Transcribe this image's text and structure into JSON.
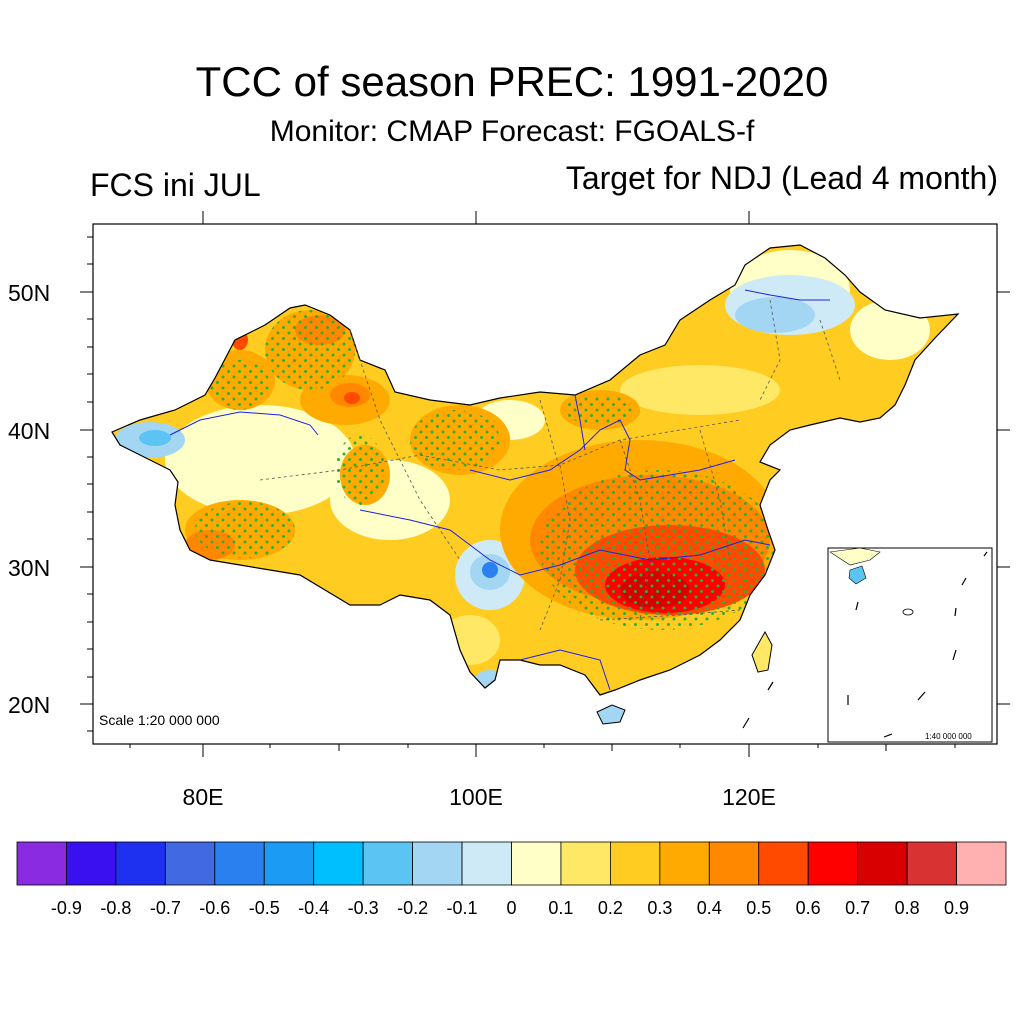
{
  "title": "TCC of season PREC: 1991-2020",
  "subtitle": "Monitor: CMAP   Forecast: FGOALS-f",
  "left_label": "FCS ini JUL",
  "right_label": "Target for NDJ (Lead 4 month)",
  "scale_main": "Scale 1:20 000 000",
  "scale_inset": "1:40 000 000",
  "lat_ticks": [
    "50N",
    "40N",
    "30N",
    "20N"
  ],
  "lon_ticks": [
    "80E",
    "100E",
    "120E"
  ],
  "colorbar": {
    "labels": [
      "-0.9",
      "-0.8",
      "-0.7",
      "-0.6",
      "-0.5",
      "-0.4",
      "-0.3",
      "-0.2",
      "-0.1",
      "0",
      "0.1",
      "0.2",
      "0.3",
      "0.4",
      "0.5",
      "0.6",
      "0.7",
      "0.8",
      "0.9"
    ],
    "colors": [
      "#8a2be2",
      "#3a0ff0",
      "#1e30f0",
      "#4169e1",
      "#2b80f0",
      "#1c9bf5",
      "#00bfff",
      "#5bc4f2",
      "#a3d6f2",
      "#ceeaf7",
      "#ffffc8",
      "#ffe866",
      "#ffcc22",
      "#ffaa00",
      "#ff8800",
      "#ff4a00",
      "#ff0000",
      "#d80000",
      "#d83232",
      "#ffb0b0"
    ]
  }
}
